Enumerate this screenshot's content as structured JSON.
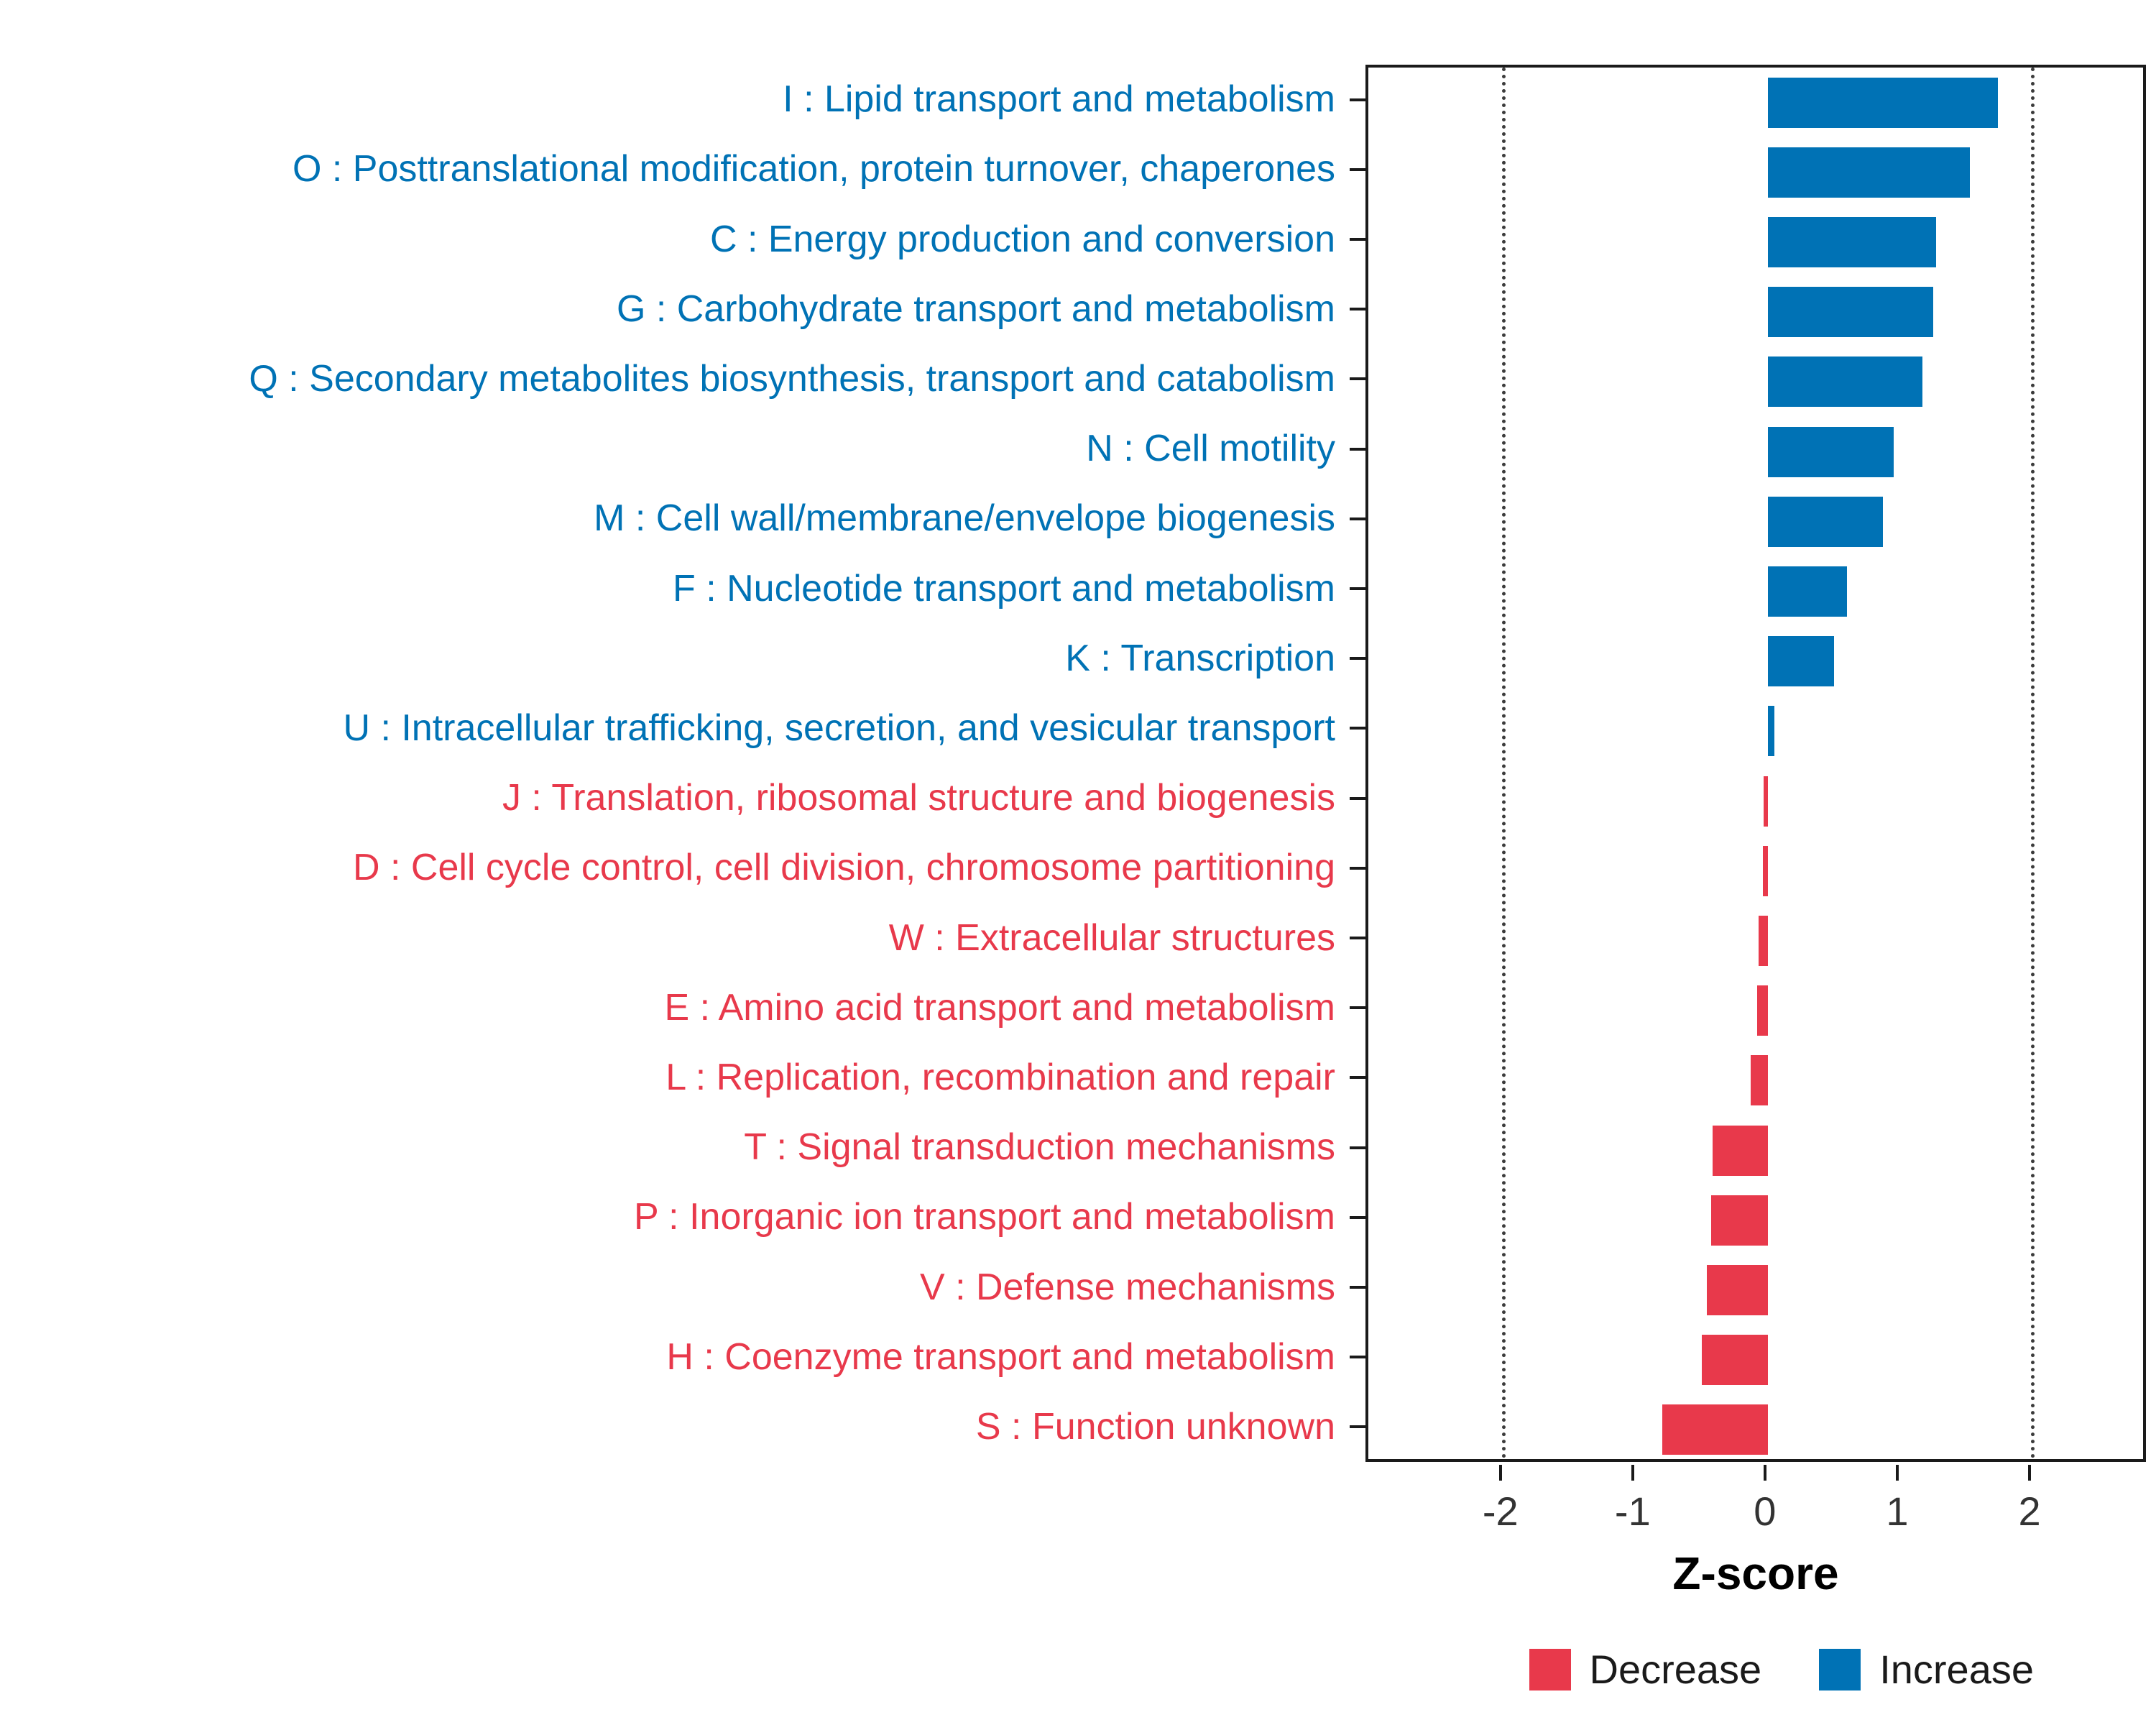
{
  "chart_data": {
    "type": "bar",
    "orientation": "horizontal",
    "title": "",
    "xlabel": "Z-score",
    "ylabel": "",
    "xlim": [
      -3.0,
      2.9
    ],
    "x_ticks": [
      -2,
      -1,
      0,
      1,
      2
    ],
    "reference_lines": [
      -2,
      2
    ],
    "grid": "off",
    "legend_position": "bottom-right",
    "colors": {
      "increase": "#0072B5",
      "decrease": "#E8394B"
    },
    "legend": [
      {
        "key": "decrease",
        "label": "Decrease"
      },
      {
        "key": "increase",
        "label": "Increase"
      }
    ],
    "items": [
      {
        "label": "I : Lipid transport and metabolism",
        "value": 1.74,
        "direction": "increase"
      },
      {
        "label": "O : Posttranslational modification, protein turnover, chaperones",
        "value": 1.53,
        "direction": "increase"
      },
      {
        "label": "C : Energy production and conversion",
        "value": 1.27,
        "direction": "increase"
      },
      {
        "label": "G : Carbohydrate transport and metabolism",
        "value": 1.25,
        "direction": "increase"
      },
      {
        "label": "Q : Secondary metabolites biosynthesis, transport and catabolism",
        "value": 1.17,
        "direction": "increase"
      },
      {
        "label": "N : Cell motility",
        "value": 0.95,
        "direction": "increase"
      },
      {
        "label": "M : Cell wall/membrane/envelope biogenesis",
        "value": 0.87,
        "direction": "increase"
      },
      {
        "label": "F : Nucleotide transport and metabolism",
        "value": 0.6,
        "direction": "increase"
      },
      {
        "label": "K : Transcription",
        "value": 0.5,
        "direction": "increase"
      },
      {
        "label": "U : Intracellular trafficking, secretion, and vesicular transport",
        "value": 0.05,
        "direction": "increase"
      },
      {
        "label": "J : Translation, ribosomal structure and biogenesis",
        "value": -0.03,
        "direction": "decrease"
      },
      {
        "label": "D : Cell cycle control, cell division, chromosome partitioning",
        "value": -0.04,
        "direction": "decrease"
      },
      {
        "label": "W : Extracellular structures",
        "value": -0.07,
        "direction": "decrease"
      },
      {
        "label": "E : Amino acid transport and metabolism",
        "value": -0.08,
        "direction": "decrease"
      },
      {
        "label": "L : Replication, recombination and repair",
        "value": -0.13,
        "direction": "decrease"
      },
      {
        "label": "T : Signal transduction mechanisms",
        "value": -0.42,
        "direction": "decrease"
      },
      {
        "label": "P : Inorganic ion transport and metabolism",
        "value": -0.43,
        "direction": "decrease"
      },
      {
        "label": "V : Defense mechanisms",
        "value": -0.46,
        "direction": "decrease"
      },
      {
        "label": "H : Coenzyme transport and metabolism",
        "value": -0.5,
        "direction": "decrease"
      },
      {
        "label": "S : Function unknown",
        "value": -0.8,
        "direction": "decrease"
      }
    ]
  }
}
